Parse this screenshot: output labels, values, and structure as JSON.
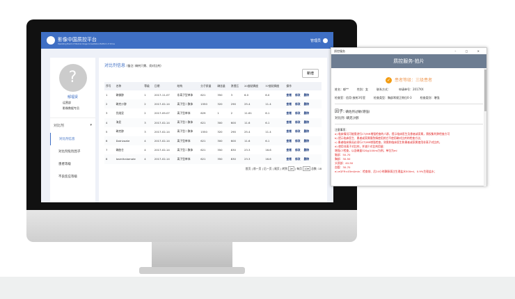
{
  "app": {
    "title": "影像中国质控平台",
    "subtitle": "Operating Board of Medical Image Consultation Platform of China",
    "user": "管理员"
  },
  "sidebar": {
    "name": "郁福贤",
    "info1": "运营部",
    "info2": "影像数据专员",
    "menu_header": "对比剂",
    "items": [
      {
        "label": "对比剂信息",
        "active": true
      },
      {
        "label": "对比剂危险因子"
      },
      {
        "label": "患者等级"
      },
      {
        "label": "不良反应等级"
      }
    ]
  },
  "main": {
    "title": "对比剂信息",
    "note": "(备注: 碘剂只需、须对比剂)",
    "add_label": "新增",
    "columns": [
      "序号",
      "名称",
      "等级",
      "日期",
      "结构",
      "分子质量",
      "碘含量",
      "渗透压",
      "20度粘稠度",
      "37度粘稠度",
      "操作"
    ],
    "rows": [
      [
        "1",
        "碘佛醇",
        "1",
        "2017-11-07",
        "非离子型单体",
        "621",
        "350",
        "3",
        "6.0",
        "6.0"
      ],
      [
        "2",
        "碘克沙醇",
        "2",
        "2017-02-14",
        "离子型二聚体",
        "1550",
        "320",
        "290",
        "25.4",
        "11.4"
      ],
      [
        "3",
        "优维显",
        "2",
        "2017-09-07",
        "离子型单体",
        "629",
        "1",
        "2",
        "11.61",
        "6.1"
      ],
      [
        "4",
        "海显",
        "3",
        "2017-02-14",
        "离子型二聚体",
        "621",
        "300",
        "600",
        "11.6",
        "6.1"
      ],
      [
        "5",
        "碘克醇",
        "3",
        "2017-02-14",
        "离子型二聚体",
        "1550",
        "320",
        "290",
        "25.4",
        "11.4"
      ],
      [
        "6",
        "Dotrizoate",
        "4",
        "2017-02-14",
        "离子型单体",
        "621",
        "300",
        "600",
        "11.6",
        "6.1"
      ],
      [
        "7",
        "碘曲仑",
        "4",
        "2017-02-14",
        "离子型二聚体",
        "621",
        "350",
        "830",
        "23.3",
        "16.6"
      ],
      [
        "8",
        "Iosinthalamate",
        "4",
        "2017-02-14",
        "离子型单体",
        "621",
        "350",
        "830",
        "23.3",
        "16.6"
      ]
    ],
    "actions": [
      "查看",
      "修改",
      "删除"
    ],
    "pagination": {
      "first": "首页",
      "prev": "前一页",
      "next": "后一页",
      "last": "尾页",
      "goto": "转到",
      "page": "2",
      "per_page_label": "每页",
      "per_page": "10",
      "total_label": "总数:",
      "total": "18"
    }
  },
  "popup": {
    "window_title": "质控服务",
    "header": "质控服务-拍片",
    "level": "患者等级：三级患者",
    "fields1": [
      "姓名：郁**",
      "性别：女",
      "联系方式：",
      "申请单号：2017XX"
    ],
    "fields2": [
      "检查室：信用-放射3号室",
      "检查类型：胸部常规正侧位0-3",
      "检查类别：增强"
    ],
    "factor_label": "因子:",
    "factor": "碘佐剂过敏(增强)",
    "contrast": "对比剂: 碘克沙醇",
    "notes_title": "注意事项：",
    "notes": [
      "a) 临床情况可能需进行CT/MR增强检查的人群，提示临床医生及患者或家属，需权衡利弊检查方可",
      "b) 提示临床医生、患者或家属需酌情使用其它不使用碘对比剂的检查方法；",
      "c) 患者临床情况必须行CT/MR增强检查，则需和临床医生和患者或家属使用非离子对比剂，",
      "d) 使用非离子对比剂，并减少对比剂用量：",
      "增强CT检查，以含碘量320g/100ml为例，单位为ml",
      "脑部：50-70",
      "胸部：30-50",
      "头颈部：40-50",
      "血管：30-70",
      "e) eGFR<45ml/min：检查前、后24小时静脉滴注生理盐水500ml、0.9%生理盐水；"
    ]
  }
}
